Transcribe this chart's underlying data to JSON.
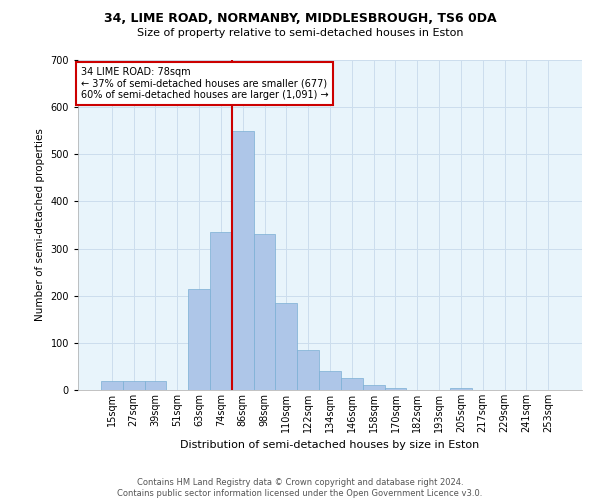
{
  "title": "34, LIME ROAD, NORMANBY, MIDDLESBROUGH, TS6 0DA",
  "subtitle": "Size of property relative to semi-detached houses in Eston",
  "xlabel": "Distribution of semi-detached houses by size in Eston",
  "ylabel": "Number of semi-detached properties",
  "footer_line1": "Contains HM Land Registry data © Crown copyright and database right 2024.",
  "footer_line2": "Contains public sector information licensed under the Open Government Licence v3.0.",
  "bar_labels": [
    "15sqm",
    "27sqm",
    "39sqm",
    "51sqm",
    "63sqm",
    "74sqm",
    "86sqm",
    "98sqm",
    "110sqm",
    "122sqm",
    "134sqm",
    "146sqm",
    "158sqm",
    "170sqm",
    "182sqm",
    "193sqm",
    "205sqm",
    "217sqm",
    "229sqm",
    "241sqm",
    "253sqm"
  ],
  "bar_values": [
    20,
    20,
    20,
    0,
    215,
    335,
    550,
    330,
    185,
    85,
    40,
    25,
    10,
    5,
    0,
    0,
    5,
    0,
    0,
    0,
    0
  ],
  "bar_color": "#aec6e8",
  "bar_edgecolor": "#7aafd4",
  "red_line_x": 5.5,
  "red_line_label": "34 LIME ROAD: 78sqm",
  "smaller_pct": "37%",
  "smaller_n": "677",
  "larger_pct": "60%",
  "larger_n": "1,091",
  "annotation_box_edgecolor": "#cc0000",
  "ylim": [
    0,
    700
  ],
  "yticks": [
    0,
    100,
    200,
    300,
    400,
    500,
    600,
    700
  ],
  "grid_color": "#ccdded",
  "background_color": "#e8f4fb",
  "title_fontsize": 9,
  "subtitle_fontsize": 8,
  "ylabel_fontsize": 7.5,
  "xlabel_fontsize": 8,
  "footer_fontsize": 6,
  "tick_labelsize": 7,
  "annotation_fontsize": 7
}
